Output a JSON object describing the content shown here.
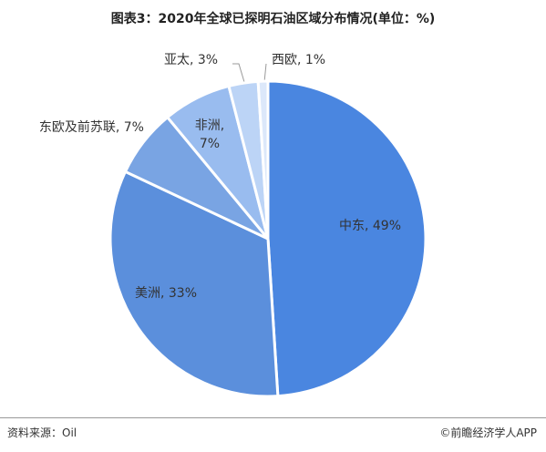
{
  "chart_data": {
    "type": "pie",
    "title": "图表3：2020年全球已探明石油区域分布情况(单位：%)",
    "categories": [
      "中东",
      "美洲",
      "东欧及前苏联",
      "非洲",
      "亚太",
      "西欧"
    ],
    "values": [
      49,
      33,
      7,
      7,
      3,
      1
    ],
    "value_labels": [
      "中东, 49%",
      "美洲, 33%",
      "东欧及前苏联, 7%",
      "非洲, 7%",
      "亚太, 3%",
      "西欧, 1%"
    ],
    "colors": [
      "#4a86e0",
      "#5b8fdc",
      "#79a4e3",
      "#99bcef",
      "#bcd4f6",
      "#dce8fa"
    ]
  },
  "source": "资料来源：Oil",
  "brand": "©前瞻经济学人APP"
}
